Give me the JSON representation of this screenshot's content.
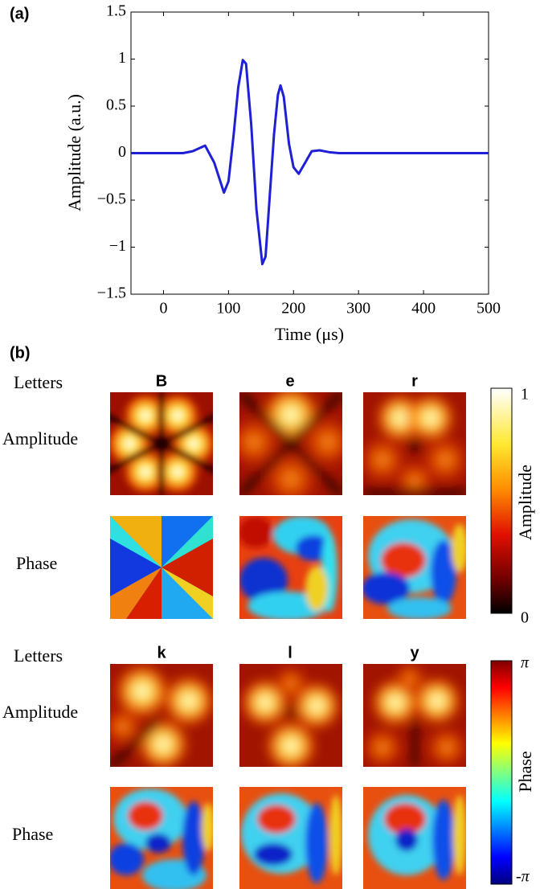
{
  "chart_data": {
    "type": "line",
    "panel_label": "(a)",
    "xlabel": "Time (μs)",
    "ylabel": "Amplitude (a.u.)",
    "color": "#1f1fd6",
    "x": [
      -50,
      0,
      30,
      45,
      64,
      78,
      93,
      100,
      108,
      115,
      122,
      127,
      135,
      143,
      152,
      157,
      163,
      170,
      176,
      180,
      185,
      193,
      200,
      208,
      218,
      228,
      240,
      255,
      270,
      500
    ],
    "values": [
      0,
      0,
      0,
      0.02,
      0.08,
      -0.1,
      -0.42,
      -0.3,
      0.2,
      0.7,
      0.99,
      0.95,
      0.3,
      -0.6,
      -1.18,
      -1.1,
      -0.5,
      0.2,
      0.62,
      0.72,
      0.6,
      0.1,
      -0.15,
      -0.22,
      -0.1,
      0.02,
      0.03,
      0.01,
      0,
      0
    ],
    "xlim": [
      -50,
      500
    ],
    "xticks": [
      0,
      100,
      200,
      300,
      400,
      500
    ],
    "ylim": [
      -1.5,
      1.5
    ],
    "yticks": [
      {
        "value": -1.5,
        "label": "−1.5"
      },
      {
        "value": -1,
        "label": "−1"
      },
      {
        "value": -0.5,
        "label": "−0.5"
      },
      0,
      0.5,
      1,
      1.5
    ]
  },
  "panel_b": {
    "panel_label": "(b)",
    "rows": [
      {
        "row_labels": [
          "Letters",
          "Amplitude",
          "Phase"
        ],
        "letters": [
          "B",
          "e",
          "r"
        ]
      },
      {
        "row_labels": [
          "Letters",
          "Amplitude",
          "Phase"
        ],
        "letters": [
          "k",
          "l",
          "y"
        ]
      }
    ],
    "amplitude_colorbar": {
      "label": "Amplitude",
      "max": 1,
      "min": 0
    },
    "phase_colorbar": {
      "label": "Phase",
      "max": "π",
      "min": "-π"
    }
  }
}
